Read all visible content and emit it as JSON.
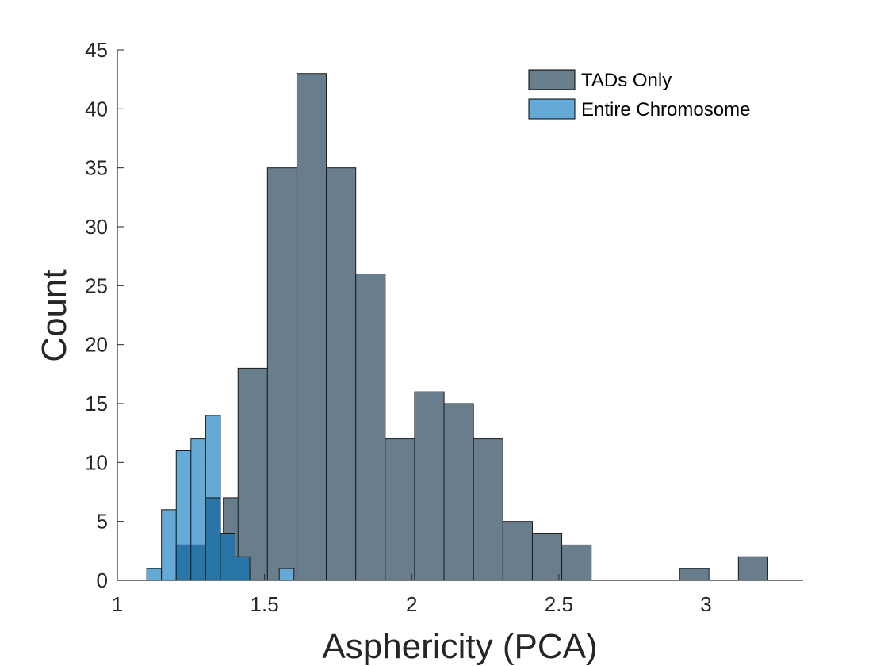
{
  "chart_data": {
    "type": "bar",
    "subtype": "overlaid-histogram",
    "xlabel": "Asphericity (PCA)",
    "ylabel": "Count",
    "xlim": [
      1,
      3.33
    ],
    "ylim": [
      0,
      45
    ],
    "xticks": [
      1,
      1.5,
      2,
      2.5,
      3
    ],
    "yticks": [
      0,
      5,
      10,
      15,
      20,
      25,
      30,
      35,
      40,
      45
    ],
    "grid": false,
    "legend_position": "top-right",
    "series": [
      {
        "name": "TADs Only",
        "color": "#687e8c",
        "bin_width": 0.1,
        "bins": [
          {
            "x0": 1.31,
            "count": 1
          },
          {
            "x0": 1.36,
            "count": 7
          },
          {
            "x0": 1.41,
            "count": 18
          },
          {
            "x0": 1.51,
            "count": 35
          },
          {
            "x0": 1.61,
            "count": 43
          },
          {
            "x0": 1.71,
            "count": 35
          },
          {
            "x0": 1.81,
            "count": 26
          },
          {
            "x0": 1.91,
            "count": 12
          },
          {
            "x0": 2.01,
            "count": 16
          },
          {
            "x0": 2.11,
            "count": 15
          },
          {
            "x0": 2.21,
            "count": 12
          },
          {
            "x0": 2.31,
            "count": 5
          },
          {
            "x0": 2.41,
            "count": 4
          },
          {
            "x0": 2.51,
            "count": 3
          },
          {
            "x0": 2.91,
            "count": 1
          },
          {
            "x0": 3.11,
            "count": 2
          }
        ]
      },
      {
        "name": "Entire Chromosome",
        "color": "#65a9d7",
        "overlap_color": "#2876a8",
        "bin_width": 0.05,
        "bins": [
          {
            "x0": 1.1,
            "count": 1
          },
          {
            "x0": 1.15,
            "count": 6
          },
          {
            "x0": 1.2,
            "count": 11
          },
          {
            "x0": 1.25,
            "count": 12
          },
          {
            "x0": 1.3,
            "count": 14
          },
          {
            "x0": 1.35,
            "count": 4
          },
          {
            "x0": 1.4,
            "count": 1
          },
          {
            "x0": 1.55,
            "count": 1
          }
        ]
      }
    ],
    "overlap_bins": [
      {
        "x0": 1.2,
        "x1": 1.25,
        "count": 3
      },
      {
        "x0": 1.25,
        "x1": 1.3,
        "count": 3
      },
      {
        "x0": 1.3,
        "x1": 1.35,
        "count": 7
      },
      {
        "x0": 1.35,
        "x1": 1.4,
        "count": 4
      },
      {
        "x0": 1.4,
        "x1": 1.45,
        "count": 2
      }
    ]
  }
}
